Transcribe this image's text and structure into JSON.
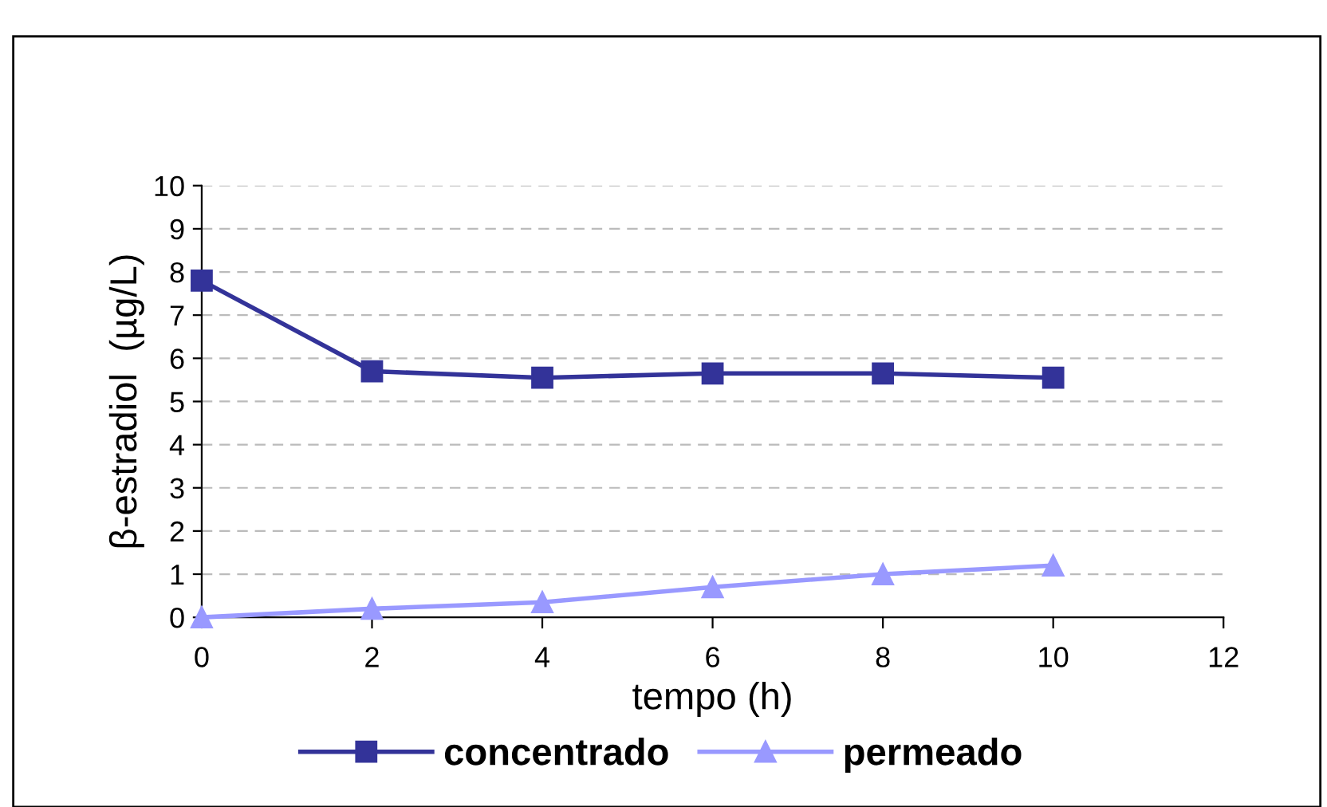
{
  "chart_data": {
    "type": "line",
    "xlabel": "tempo (h)",
    "ylabel": "β-estradiol  (µg/L)",
    "x": [
      0,
      2,
      4,
      6,
      8,
      10
    ],
    "series": [
      {
        "name": "concentrado",
        "color": "#333399",
        "marker": "square",
        "values": [
          7.8,
          5.7,
          5.55,
          5.65,
          5.65,
          5.55
        ]
      },
      {
        "name": "permeado",
        "color": "#9999ff",
        "marker": "triangle",
        "values": [
          0,
          0.2,
          0.35,
          0.7,
          1.0,
          1.2
        ]
      }
    ],
    "xlim": [
      0,
      12
    ],
    "xticks": [
      0,
      2,
      4,
      6,
      8,
      10,
      12
    ],
    "ylim": [
      0,
      10
    ],
    "yticks": [
      0,
      1,
      2,
      3,
      4,
      5,
      6,
      7,
      8,
      9,
      10
    ],
    "grid": "y",
    "legend": "bottom",
    "line_style": "solid"
  }
}
